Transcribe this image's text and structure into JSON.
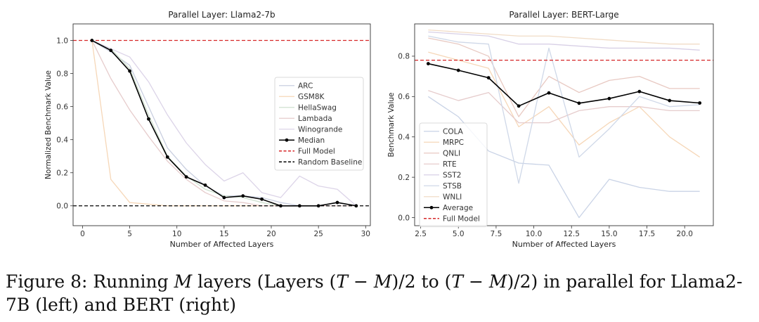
{
  "chart_data": [
    {
      "type": "line",
      "title": "Parallel Layer: Llama2-7b",
      "xlabel": "Number of Affected Layers",
      "ylabel": "Normalized Benchmark Value",
      "xlim": [
        -1,
        30.5
      ],
      "ylim": [
        -0.12,
        1.1
      ],
      "xticks": [
        0,
        5,
        10,
        15,
        20,
        25,
        30
      ],
      "yticks": [
        0.0,
        0.2,
        0.4,
        0.6,
        0.8,
        1.0
      ],
      "ytick_labels": [
        "0.0",
        "0.2",
        "0.4",
        "0.6",
        "0.8",
        "1.0"
      ],
      "legend_position": "center-right",
      "grid": false,
      "x": [
        1,
        3,
        5,
        7,
        9,
        11,
        13,
        15,
        17,
        19,
        21,
        23,
        25,
        27,
        29
      ],
      "series": [
        {
          "name": "ARC",
          "color": "#c9cfe0",
          "faint": true,
          "values": [
            1.0,
            0.93,
            0.85,
            0.6,
            0.35,
            0.22,
            0.12,
            0.06,
            0.06,
            0.05,
            0.02,
            0.0,
            0.0,
            0.02,
            0.0
          ]
        },
        {
          "name": "GSM8K",
          "color": "#f6d7b8",
          "faint": true,
          "values": [
            1.0,
            0.16,
            0.02,
            0.01,
            0.0,
            0.0,
            0.0,
            0.0,
            0.0,
            0.0,
            0.0,
            0.0,
            0.0,
            0.0,
            0.0
          ]
        },
        {
          "name": "HellaSwag",
          "color": "#cfe0cf",
          "faint": true,
          "values": [
            1.0,
            0.95,
            0.83,
            0.55,
            0.3,
            0.18,
            0.1,
            0.06,
            0.05,
            0.02,
            0.0,
            0.0,
            0.0,
            0.0,
            0.0
          ]
        },
        {
          "name": "Lambada",
          "color": "#e6cccc",
          "faint": true,
          "values": [
            1.0,
            0.77,
            0.58,
            0.42,
            0.27,
            0.16,
            0.08,
            0.03,
            0.02,
            0.0,
            0.0,
            0.0,
            0.0,
            0.0,
            0.0
          ]
        },
        {
          "name": "Winogrande",
          "color": "#dcd4e8",
          "faint": true,
          "values": [
            1.0,
            0.95,
            0.9,
            0.75,
            0.55,
            0.38,
            0.25,
            0.15,
            0.2,
            0.08,
            0.05,
            0.18,
            0.12,
            0.1,
            0.0
          ]
        },
        {
          "name": "Median",
          "color": "#000000",
          "faint": false,
          "marker": true,
          "values": [
            1.0,
            0.94,
            0.815,
            0.525,
            0.295,
            0.175,
            0.125,
            0.05,
            0.06,
            0.04,
            0.0,
            0.0,
            0.0,
            0.02,
            0.0
          ]
        }
      ],
      "hlines": [
        {
          "name": "Full Model",
          "y": 1.0,
          "color": "#d62728",
          "dash": true
        },
        {
          "name": "Random Baseline",
          "y": 0.0,
          "color": "#000000",
          "dash": true
        }
      ],
      "legend": [
        {
          "name": "ARC",
          "color": "#c9cfe0",
          "style": "line"
        },
        {
          "name": "GSM8K",
          "color": "#f6d7b8",
          "style": "line"
        },
        {
          "name": "HellaSwag",
          "color": "#cfe0cf",
          "style": "line"
        },
        {
          "name": "Lambada",
          "color": "#e6cccc",
          "style": "line"
        },
        {
          "name": "Winogrande",
          "color": "#dcd4e8",
          "style": "line"
        },
        {
          "name": "Median",
          "color": "#000000",
          "style": "marker"
        },
        {
          "name": "Full Model",
          "color": "#d62728",
          "style": "dash"
        },
        {
          "name": "Random Baseline",
          "color": "#000000",
          "style": "dash"
        }
      ]
    },
    {
      "type": "line",
      "title": "Parallel Layer: BERT-Large",
      "xlabel": "Number of Affected Layers",
      "ylabel": "Benchmark Value",
      "xlim": [
        2.1,
        21.9
      ],
      "ylim": [
        -0.04,
        0.96
      ],
      "xticks": [
        2.5,
        5.0,
        7.5,
        10.0,
        12.5,
        15.0,
        17.5,
        20.0
      ],
      "xtick_labels": [
        "2.5",
        "5.0",
        "7.5",
        "10.0",
        "12.5",
        "15.0",
        "17.5",
        "20.0"
      ],
      "yticks": [
        0.0,
        0.2,
        0.4,
        0.6,
        0.8
      ],
      "ytick_labels": [
        "0.0",
        "0.2",
        "0.4",
        "0.6",
        "0.8"
      ],
      "legend_position": "lower-left",
      "grid": false,
      "x": [
        3,
        5,
        7,
        9,
        11,
        13,
        15,
        17,
        19,
        21
      ],
      "series": [
        {
          "name": "COLA",
          "color": "#c9d3e6",
          "faint": true,
          "values": [
            0.6,
            0.5,
            0.33,
            0.27,
            0.26,
            0.0,
            0.19,
            0.15,
            0.13,
            0.13
          ]
        },
        {
          "name": "MRPC",
          "color": "#f6d7b8",
          "faint": true,
          "values": [
            0.82,
            0.78,
            0.74,
            0.45,
            0.55,
            0.36,
            0.47,
            0.55,
            0.4,
            0.3
          ]
        },
        {
          "name": "QNLI",
          "color": "#e8c9c2",
          "faint": true,
          "values": [
            0.89,
            0.86,
            0.8,
            0.5,
            0.7,
            0.62,
            0.68,
            0.7,
            0.64,
            0.64
          ]
        },
        {
          "name": "RTE",
          "color": "#e6cccc",
          "faint": true,
          "values": [
            0.63,
            0.58,
            0.62,
            0.47,
            0.47,
            0.53,
            0.55,
            0.55,
            0.53,
            0.53
          ]
        },
        {
          "name": "SST2",
          "color": "#d8d0e6",
          "faint": true,
          "values": [
            0.92,
            0.91,
            0.9,
            0.86,
            0.86,
            0.85,
            0.84,
            0.84,
            0.84,
            0.83
          ]
        },
        {
          "name": "STSB",
          "color": "#cfd8e8",
          "faint": true,
          "values": [
            0.9,
            0.87,
            0.86,
            0.17,
            0.84,
            0.3,
            0.44,
            0.6,
            0.55,
            0.56
          ]
        },
        {
          "name": "WNLI",
          "color": "#f1dcc6",
          "faint": true,
          "values": [
            0.93,
            0.92,
            0.91,
            0.9,
            0.9,
            0.89,
            0.88,
            0.87,
            0.86,
            0.86
          ]
        },
        {
          "name": "Average",
          "color": "#000000",
          "faint": false,
          "marker": true,
          "values": [
            0.763,
            0.73,
            0.693,
            0.553,
            0.618,
            0.567,
            0.59,
            0.625,
            0.58,
            0.568
          ]
        }
      ],
      "hlines": [
        {
          "name": "Full Model",
          "y": 0.78,
          "color": "#d62728",
          "dash": true
        }
      ],
      "legend": [
        {
          "name": "COLA",
          "color": "#c9d3e6",
          "style": "line"
        },
        {
          "name": "MRPC",
          "color": "#f6d7b8",
          "style": "line"
        },
        {
          "name": "QNLI",
          "color": "#e8c9c2",
          "style": "line"
        },
        {
          "name": "RTE",
          "color": "#e6cccc",
          "style": "line"
        },
        {
          "name": "SST2",
          "color": "#d8d0e6",
          "style": "line"
        },
        {
          "name": "STSB",
          "color": "#cfd8e8",
          "style": "line"
        },
        {
          "name": "WNLI",
          "color": "#f1dcc6",
          "style": "line"
        },
        {
          "name": "Average",
          "color": "#000000",
          "style": "marker"
        },
        {
          "name": "Full Model",
          "color": "#d62728",
          "style": "dash"
        }
      ]
    }
  ],
  "caption": {
    "prefix": "Figure 8: Running ",
    "var_m": "M",
    "mid1": " layers (Layers (",
    "var_t1": "T",
    "minus1": " − ",
    "var_m1": "M",
    "mid2": ")/2 to (",
    "var_t2": "T",
    "minus2": " − ",
    "var_m2": "M",
    "suffix": ")/2) in parallel for Llama2-7B (left) and BERT (right)"
  }
}
